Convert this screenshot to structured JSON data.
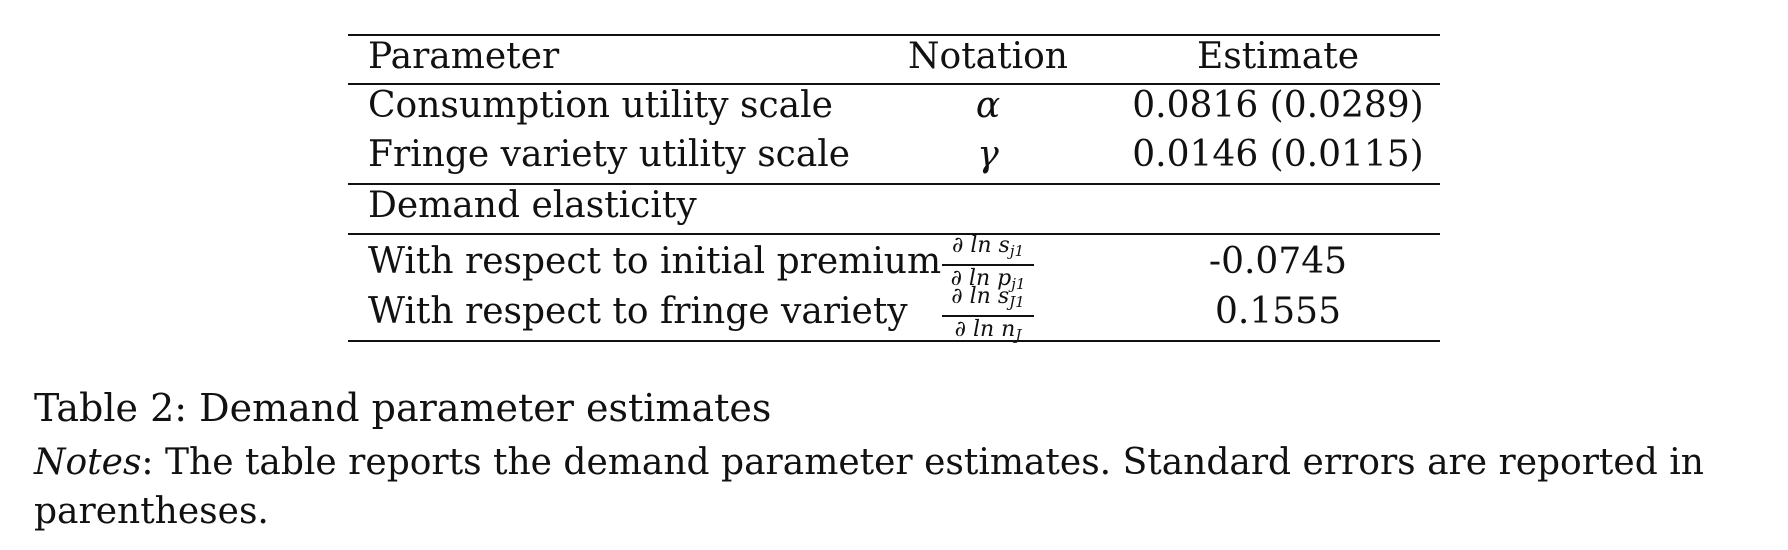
{
  "table": {
    "headers": {
      "parameter": "Parameter",
      "notation": "Notation",
      "estimate": "Estimate"
    },
    "rows": [
      {
        "parameter": "Consumption utility scale",
        "notation": "α",
        "estimate": "0.0816 (0.0289)"
      },
      {
        "parameter": "Fringe variety utility scale",
        "notation": "γ",
        "estimate": "0.0146 (0.0115)"
      }
    ],
    "section_label": "Demand elasticity",
    "elasticity_rows": [
      {
        "parameter": "With respect to initial premium",
        "notation_num": "∂ ln s",
        "notation_num_sub": "j1",
        "notation_den": "∂ ln p",
        "notation_den_sub": "j1",
        "estimate": "-0.0745"
      },
      {
        "parameter": "With respect to fringe variety",
        "notation_num": "∂ ln s",
        "notation_num_sub": "J1",
        "notation_den": "∂ ln n",
        "notation_den_sub": "J",
        "estimate": "0.1555"
      }
    ]
  },
  "caption": "Table 2: Demand parameter estimates",
  "notes": {
    "label": "Notes",
    "text": ": The table reports the demand parameter estimates. Standard errors are reported in parentheses."
  }
}
